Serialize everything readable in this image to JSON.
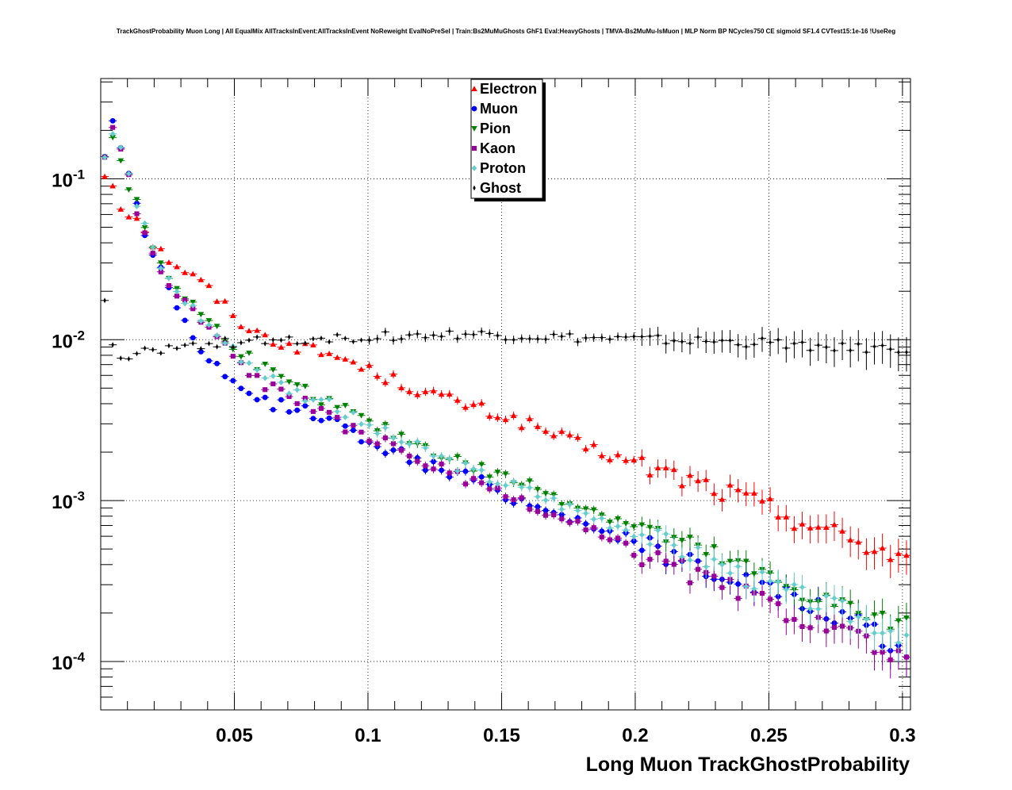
{
  "chart_data": {
    "type": "scatter",
    "title": "TrackGhostProbability Muon Long | All EqualMix AllTracksInEvent:AllTracksInEvent NoReweight EvalNoPreSel | Train:Bs2MuMuGhosts GhF1 Eval:HeavyGhosts | TMVA-Bs2MuMu-IsMuon | MLP Norm BP NCycles750 CE sigmoid SF1.4 CVTest15:1e-16 !UseReg",
    "xlabel": "Long Muon TrackGhostProbability",
    "ylabel": "",
    "xlim": [
      0.0,
      0.303
    ],
    "ylim": [
      5e-05,
      0.42
    ],
    "yscale": "log",
    "grid": true,
    "legend_position": "top-center",
    "x_ticks": [
      {
        "value": 0.05,
        "label": "0.05"
      },
      {
        "value": 0.1,
        "label": "0.1"
      },
      {
        "value": 0.15,
        "label": "0.15"
      },
      {
        "value": 0.2,
        "label": "0.2"
      },
      {
        "value": 0.25,
        "label": "0.25"
      },
      {
        "value": 0.3,
        "label": "0.3"
      }
    ],
    "y_ticks": [
      {
        "value": 0.1,
        "base": "10",
        "exp": "-1"
      },
      {
        "value": 0.01,
        "base": "10",
        "exp": "-2"
      },
      {
        "value": 0.001,
        "base": "10",
        "exp": "-3"
      },
      {
        "value": 0.0001,
        "base": "10",
        "exp": "-4"
      }
    ],
    "series": [
      {
        "name": "Electron",
        "color": "#ff0000",
        "marker": "triangle-up",
        "anchors": [
          [
            0.0015,
            0.105
          ],
          [
            0.0045,
            0.095
          ],
          [
            0.0075,
            0.068
          ],
          [
            0.012,
            0.06
          ],
          [
            0.016,
            0.052
          ],
          [
            0.02,
            0.038
          ],
          [
            0.03,
            0.028
          ],
          [
            0.04,
            0.021
          ],
          [
            0.05,
            0.014
          ],
          [
            0.06,
            0.0105
          ],
          [
            0.07,
            0.0095
          ],
          [
            0.08,
            0.0085
          ],
          [
            0.09,
            0.0078
          ],
          [
            0.1,
            0.0065
          ],
          [
            0.12,
            0.0048
          ],
          [
            0.14,
            0.0038
          ],
          [
            0.16,
            0.003
          ],
          [
            0.18,
            0.0022
          ],
          [
            0.2,
            0.0017
          ],
          [
            0.22,
            0.00135
          ],
          [
            0.24,
            0.00105
          ],
          [
            0.26,
            0.00078
          ],
          [
            0.28,
            0.00058
          ],
          [
            0.3,
            0.00045
          ]
        ]
      },
      {
        "name": "Muon",
        "color": "#0000ff",
        "marker": "circle",
        "anchors": [
          [
            0.0015,
            0.14
          ],
          [
            0.0045,
            0.22
          ],
          [
            0.0075,
            0.16
          ],
          [
            0.0105,
            0.115
          ],
          [
            0.013,
            0.072
          ],
          [
            0.0165,
            0.046
          ],
          [
            0.02,
            0.033
          ],
          [
            0.025,
            0.023
          ],
          [
            0.03,
            0.014
          ],
          [
            0.035,
            0.0095
          ],
          [
            0.04,
            0.0072
          ],
          [
            0.045,
            0.0062
          ],
          [
            0.05,
            0.0052
          ],
          [
            0.06,
            0.0042
          ],
          [
            0.07,
            0.0038
          ],
          [
            0.08,
            0.0035
          ],
          [
            0.1,
            0.0024
          ],
          [
            0.12,
            0.0017
          ],
          [
            0.14,
            0.00135
          ],
          [
            0.16,
            0.00095
          ],
          [
            0.18,
            0.00075
          ],
          [
            0.2,
            0.00055
          ],
          [
            0.22,
            0.00042
          ],
          [
            0.24,
            0.00032
          ],
          [
            0.26,
            0.00024
          ],
          [
            0.28,
            0.00018
          ],
          [
            0.3,
            0.000115
          ]
        ]
      },
      {
        "name": "Pion",
        "color": "#008000",
        "marker": "triangle-down",
        "anchors": [
          [
            0.0015,
            0.14
          ],
          [
            0.0045,
            0.19
          ],
          [
            0.0075,
            0.13
          ],
          [
            0.0105,
            0.09
          ],
          [
            0.013,
            0.072
          ],
          [
            0.0165,
            0.05
          ],
          [
            0.02,
            0.036
          ],
          [
            0.025,
            0.025
          ],
          [
            0.03,
            0.02
          ],
          [
            0.04,
            0.013
          ],
          [
            0.05,
            0.0092
          ],
          [
            0.06,
            0.0068
          ],
          [
            0.07,
            0.0052
          ],
          [
            0.08,
            0.0045
          ],
          [
            0.09,
            0.0038
          ],
          [
            0.1,
            0.003
          ],
          [
            0.12,
            0.0022
          ],
          [
            0.14,
            0.0016
          ],
          [
            0.16,
            0.00125
          ],
          [
            0.18,
            0.00092
          ],
          [
            0.2,
            0.0007
          ],
          [
            0.22,
            0.00052
          ],
          [
            0.24,
            0.00038
          ],
          [
            0.26,
            0.00028
          ],
          [
            0.28,
            0.00021
          ],
          [
            0.3,
            0.00016
          ]
        ]
      },
      {
        "name": "Kaon",
        "color": "#990099",
        "marker": "square",
        "anchors": [
          [
            0.0015,
            0.14
          ],
          [
            0.0045,
            0.2
          ],
          [
            0.0075,
            0.15
          ],
          [
            0.0105,
            0.11
          ],
          [
            0.013,
            0.068
          ],
          [
            0.0165,
            0.045
          ],
          [
            0.02,
            0.033
          ],
          [
            0.025,
            0.022
          ],
          [
            0.03,
            0.018
          ],
          [
            0.04,
            0.012
          ],
          [
            0.05,
            0.0078
          ],
          [
            0.06,
            0.0055
          ],
          [
            0.07,
            0.0045
          ],
          [
            0.08,
            0.0037
          ],
          [
            0.09,
            0.003
          ],
          [
            0.1,
            0.0025
          ],
          [
            0.12,
            0.0018
          ],
          [
            0.14,
            0.00125
          ],
          [
            0.16,
            0.00092
          ],
          [
            0.18,
            0.00068
          ],
          [
            0.2,
            0.00048
          ],
          [
            0.22,
            0.00036
          ],
          [
            0.24,
            0.00026
          ],
          [
            0.26,
            0.0002
          ],
          [
            0.28,
            0.00014
          ],
          [
            0.3,
            0.0001
          ]
        ]
      },
      {
        "name": "Proton",
        "color": "#66cccc",
        "marker": "diamond",
        "anchors": [
          [
            0.0015,
            0.14
          ],
          [
            0.0045,
            0.2
          ],
          [
            0.0075,
            0.15
          ],
          [
            0.0105,
            0.11
          ],
          [
            0.013,
            0.072
          ],
          [
            0.0165,
            0.05
          ],
          [
            0.02,
            0.035
          ],
          [
            0.025,
            0.024
          ],
          [
            0.03,
            0.019
          ],
          [
            0.04,
            0.0125
          ],
          [
            0.05,
            0.0085
          ],
          [
            0.06,
            0.0064
          ],
          [
            0.07,
            0.005
          ],
          [
            0.08,
            0.0043
          ],
          [
            0.09,
            0.0036
          ],
          [
            0.1,
            0.0029
          ],
          [
            0.12,
            0.0021
          ],
          [
            0.14,
            0.0015
          ],
          [
            0.16,
            0.00115
          ],
          [
            0.18,
            0.00085
          ],
          [
            0.2,
            0.00065
          ],
          [
            0.22,
            0.00048
          ],
          [
            0.24,
            0.00035
          ],
          [
            0.26,
            0.00026
          ],
          [
            0.28,
            0.0002
          ],
          [
            0.3,
            0.00015
          ]
        ]
      },
      {
        "name": "Ghost",
        "color": "#000000",
        "marker": "star",
        "anchors": [
          [
            0.0015,
            0.018
          ],
          [
            0.0045,
            0.009
          ],
          [
            0.0075,
            0.0073
          ],
          [
            0.015,
            0.0082
          ],
          [
            0.025,
            0.0088
          ],
          [
            0.04,
            0.0095
          ],
          [
            0.05,
            0.0095
          ],
          [
            0.07,
            0.01
          ],
          [
            0.1,
            0.0105
          ],
          [
            0.14,
            0.0108
          ],
          [
            0.18,
            0.0102
          ],
          [
            0.22,
            0.0098
          ],
          [
            0.25,
            0.0095
          ],
          [
            0.28,
            0.0088
          ],
          [
            0.3,
            0.0088
          ]
        ]
      }
    ]
  }
}
